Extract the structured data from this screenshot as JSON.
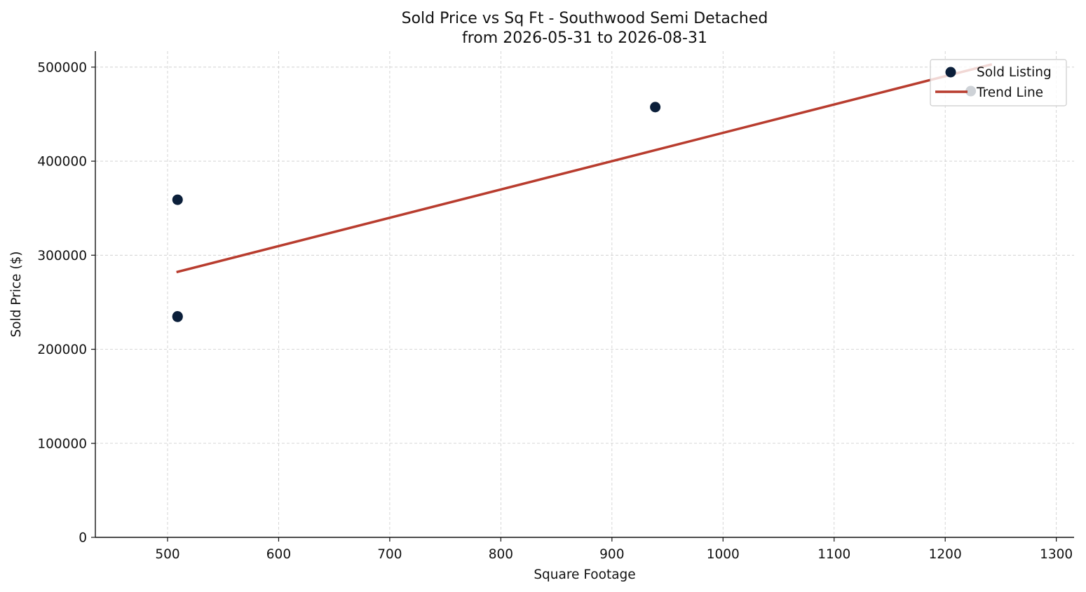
{
  "chart_data": {
    "type": "scatter",
    "title": "Sold Price vs Sq Ft - Southwood Semi Detached",
    "subtitle": "from 2026-05-31 to 2026-08-31",
    "xlabel": "Square Footage",
    "ylabel": "Sold Price ($)",
    "xlim": [
      435,
      1316
    ],
    "ylim": [
      0,
      517000
    ],
    "xticks": [
      500,
      600,
      700,
      800,
      900,
      1000,
      1100,
      1200,
      1300
    ],
    "xtick_labels": [
      "500",
      "600",
      "700",
      "800",
      "900",
      "1000",
      "1100",
      "1200",
      "1300"
    ],
    "yticks": [
      0,
      100000,
      200000,
      300000,
      400000,
      500000
    ],
    "ytick_labels": [
      "0",
      "100000",
      "200000",
      "300000",
      "400000",
      "500000"
    ],
    "grid": true,
    "legend_position": "top-right",
    "series": [
      {
        "name": "Sold Listing",
        "kind": "scatter",
        "color": "#0b1f3a",
        "points": [
          {
            "x": 509,
            "y": 359000
          },
          {
            "x": 509,
            "y": 235000
          },
          {
            "x": 509,
            "y": 234500
          },
          {
            "x": 939,
            "y": 457500
          },
          {
            "x": 1223,
            "y": 474500
          }
        ]
      },
      {
        "name": "Trend Line",
        "kind": "line",
        "color": "#b83c2e",
        "points": [
          {
            "x": 508,
            "y": 282000
          },
          {
            "x": 1242,
            "y": 503000
          }
        ]
      }
    ]
  }
}
